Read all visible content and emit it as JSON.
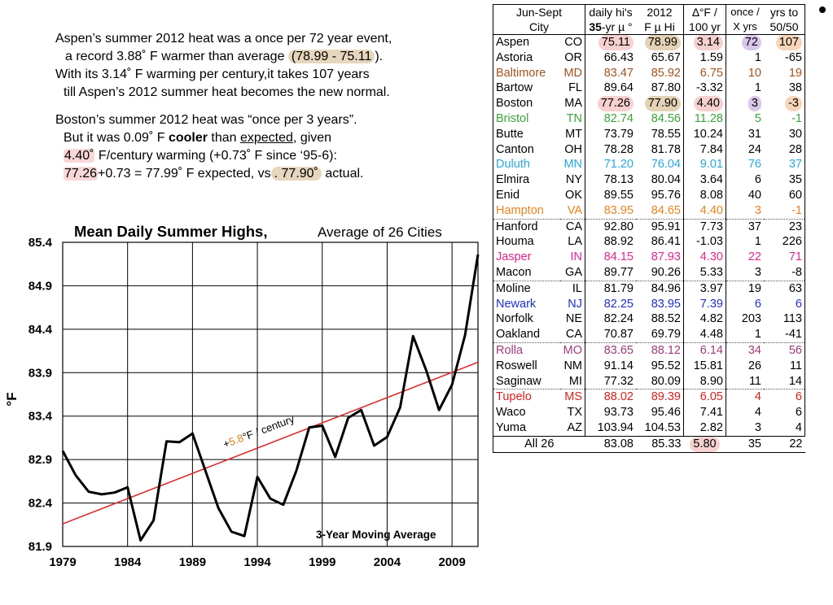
{
  "paragraph1": {
    "l1": "Aspen’s summer 2012 heat was a once per 72 year event,",
    "l2a": "a record 3.88˚ F warmer than average ",
    "l2b": "(78.99 - 75.11",
    "l2c": ").",
    "l3": "With its 3.14˚ F warming per century,it takes 107 years",
    "l4": "till Aspen’s 2012 summer heat becomes the new normal."
  },
  "paragraph2": {
    "l1": "Boston’s summer 2012 heat was “once per 3 years”.",
    "l2a": "But it was 0.09˚ F ",
    "l2b": "cooler",
    "l2c": " than ",
    "l2d": "expected",
    "l2e": ", given",
    "l3a": "4.40˚",
    "l3b": " F/century warming (+0.73˚ F since ‘95-6):",
    "l4a": "77.26",
    "l4b": "+0.73 = 77.99˚ F expected, vs",
    "l4c": ". 77.90˚",
    "l4d": "  actual."
  },
  "chart_data": {
    "type": "line",
    "title": "Mean Daily Summer Highs,",
    "subtitle": "Average of 26 Cities",
    "ylabel": "°F",
    "annotation": "3-Year Moving Average",
    "trend_label": {
      "prefix": "+",
      "value": "5.8",
      "suffix": "°F / century"
    },
    "x_ticks": [
      "1979",
      "1984",
      "1989",
      "1994",
      "1999",
      "2004",
      "2009"
    ],
    "y_ticks": [
      "85.4",
      "84.9",
      "84.4",
      "83.9",
      "83.4",
      "82.9",
      "82.4",
      "81.9"
    ],
    "xlim": [
      1979,
      2011
    ],
    "ylim": [
      81.9,
      85.4
    ],
    "grid": true,
    "series": [
      {
        "x": [
          1979,
          1980,
          1981,
          1982,
          1983,
          1984,
          1985,
          1986,
          1987,
          1988,
          1989,
          1990,
          1991,
          1992,
          1993,
          1994,
          1995,
          1996,
          1997,
          1998,
          1999,
          2000,
          2001,
          2002,
          2003,
          2004,
          2005,
          2006,
          2007,
          2008,
          2009,
          2010,
          2011
        ],
        "values": [
          83.0,
          82.72,
          82.53,
          82.5,
          82.52,
          82.58,
          81.97,
          82.2,
          83.11,
          83.1,
          83.2,
          82.77,
          82.34,
          82.07,
          82.02,
          82.7,
          82.45,
          82.38,
          82.77,
          83.27,
          83.29,
          82.93,
          83.38,
          83.47,
          83.06,
          83.16,
          83.5,
          84.32,
          83.93,
          83.47,
          83.76,
          84.33,
          85.26
        ],
        "color": "#000000"
      },
      {
        "x": [
          1979,
          2011
        ],
        "values": [
          82.16,
          84.02
        ],
        "color": "#d93030"
      }
    ]
  },
  "table": {
    "header_row1": [
      "Jun-Sept",
      "daily hi's",
      "2012",
      "∆°F /",
      "once /",
      "yrs to"
    ],
    "header_row2": [
      "City",
      "35-yr µ °",
      "F µ Hi",
      "100 yr",
      "X yrs",
      "50/50"
    ],
    "rows": [
      {
        "city": "Aspen",
        "st": "CO",
        "avg": "75.11",
        "hi": "78.99",
        "rate": "3.14",
        "once": "72",
        "yrs": "107",
        "color": "#000000"
      },
      {
        "city": "Astoria",
        "st": "OR",
        "avg": "66.43",
        "hi": "65.67",
        "rate": "1.59",
        "once": "1",
        "yrs": "-65",
        "color": "#000000"
      },
      {
        "city": "Baltimore",
        "st": "MD",
        "avg": "83.47",
        "hi": "85.92",
        "rate": "6.75",
        "once": "10",
        "yrs": "19",
        "color": "#a0521c"
      },
      {
        "city": "Bartow",
        "st": "FL",
        "avg": "89.64",
        "hi": "87.80",
        "rate": "-3.32",
        "once": "1",
        "yrs": "38",
        "color": "#000000"
      },
      {
        "city": "Boston",
        "st": "MA",
        "avg": "77.26",
        "hi": "77.90",
        "rate": "4.40",
        "once": "3",
        "yrs": "-3",
        "color": "#000000"
      },
      {
        "city": "Bristol",
        "st": "TN",
        "avg": "82.74",
        "hi": "84.56",
        "rate": "11.28",
        "once": "5",
        "yrs": "-1",
        "color": "#3aa23a"
      },
      {
        "city": "Butte",
        "st": "MT",
        "avg": "73.79",
        "hi": "78.55",
        "rate": "10.24",
        "once": "31",
        "yrs": "30",
        "color": "#000000"
      },
      {
        "city": "Canton",
        "st": "OH",
        "avg": "78.28",
        "hi": "81.78",
        "rate": "7.84",
        "once": "24",
        "yrs": "28",
        "color": "#000000"
      },
      {
        "city": "Duluth",
        "st": "MN",
        "avg": "71.20",
        "hi": "76.04",
        "rate": "9.01",
        "once": "76",
        "yrs": "37",
        "color": "#2aa6dc"
      },
      {
        "city": "Elmira",
        "st": "NY",
        "avg": "78.13",
        "hi": "80.04",
        "rate": "3.64",
        "once": "6",
        "yrs": "35",
        "color": "#000000"
      },
      {
        "city": "Enid",
        "st": "OK",
        "avg": "89.55",
        "hi": "95.76",
        "rate": "8.08",
        "once": "40",
        "yrs": "60",
        "color": "#000000"
      },
      {
        "city": "Hampton",
        "st": "VA",
        "avg": "83.95",
        "hi": "84.65",
        "rate": "4.40",
        "once": "3",
        "yrs": "-1",
        "color": "#e8821e"
      },
      {
        "city": "Hanford",
        "st": "CA",
        "avg": "92.80",
        "hi": "95.91",
        "rate": "7.73",
        "once": "37",
        "yrs": "23",
        "color": "#000000"
      },
      {
        "city": "Houma",
        "st": "LA",
        "avg": "88.92",
        "hi": "86.41",
        "rate": "-1.03",
        "once": "1",
        "yrs": "226",
        "color": "#000000"
      },
      {
        "city": "Jasper",
        "st": "IN",
        "avg": "84.15",
        "hi": "87.93",
        "rate": "4.30",
        "once": "22",
        "yrs": "71",
        "color": "#e0248c"
      },
      {
        "city": "Macon",
        "st": "GA",
        "avg": "89.77",
        "hi": "90.26",
        "rate": "5.33",
        "once": "3",
        "yrs": "-8",
        "color": "#000000"
      },
      {
        "city": "Moline",
        "st": "IL",
        "avg": "81.79",
        "hi": "84.96",
        "rate": "3.97",
        "once": "19",
        "yrs": "63",
        "color": "#000000"
      },
      {
        "city": "Newark",
        "st": "NJ",
        "avg": "82.25",
        "hi": "83.95",
        "rate": "7.39",
        "once": "6",
        "yrs": "6",
        "color": "#1f2fc8"
      },
      {
        "city": "Norfolk",
        "st": "NE",
        "avg": "82.24",
        "hi": "88.52",
        "rate": "4.82",
        "once": "203",
        "yrs": "113",
        "color": "#000000"
      },
      {
        "city": "Oakland",
        "st": "CA",
        "avg": "70.87",
        "hi": "69.79",
        "rate": "4.48",
        "once": "1",
        "yrs": "-41",
        "color": "#000000"
      },
      {
        "city": "Rolla",
        "st": "MO",
        "avg": "83.65",
        "hi": "88.12",
        "rate": "6.14",
        "once": "34",
        "yrs": "56",
        "color": "#9c3a7a"
      },
      {
        "city": "Roswell",
        "st": "NM",
        "avg": "91.14",
        "hi": "95.52",
        "rate": "15.81",
        "once": "26",
        "yrs": "11",
        "color": "#000000"
      },
      {
        "city": "Saginaw",
        "st": "MI",
        "avg": "77.32",
        "hi": "80.09",
        "rate": "8.90",
        "once": "11",
        "yrs": "14",
        "color": "#000000"
      },
      {
        "city": "Tupelo",
        "st": "MS",
        "avg": "88.02",
        "hi": "89.39",
        "rate": "6.05",
        "once": "4",
        "yrs": "6",
        "color": "#d4201e"
      },
      {
        "city": "Waco",
        "st": "TX",
        "avg": "93.73",
        "hi": "95.46",
        "rate": "7.41",
        "once": "4",
        "yrs": "6",
        "color": "#000000"
      },
      {
        "city": "Yuma",
        "st": "AZ",
        "avg": "103.94",
        "hi": "104.53",
        "rate": "2.82",
        "once": "3",
        "yrs": "4",
        "color": "#000000"
      }
    ],
    "footer": {
      "city": "All 26",
      "avg": "83.08",
      "hi": "85.33",
      "rate": "5.80",
      "once": "35",
      "yrs": "22"
    }
  }
}
